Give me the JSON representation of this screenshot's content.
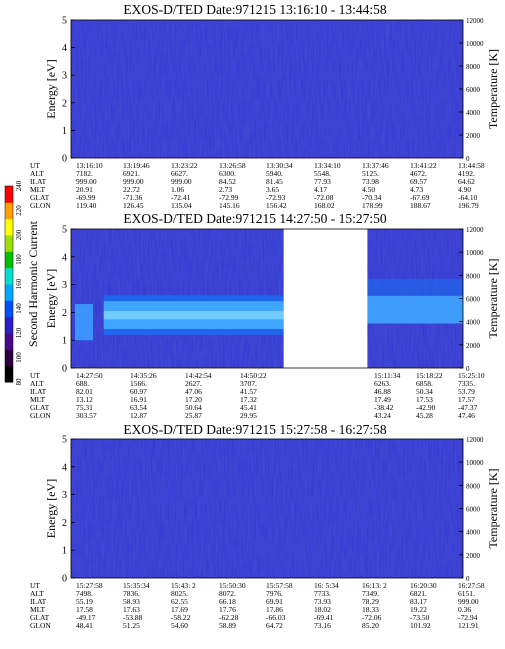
{
  "chart_data": [
    {
      "type": "heatmap",
      "title": "EXOS-D/TED   Date:971215   13:16:10 - 13:44:58",
      "ylabel": "Energy [eV]",
      "ylabel_right": "Temperature [K]",
      "ylim": [
        0,
        5
      ],
      "yticks": [
        "0",
        "1",
        "2",
        "3",
        "4",
        "5"
      ],
      "ylim_right": [
        0,
        12000
      ],
      "yticks_right": [
        "0",
        "2000",
        "4000",
        "6000",
        "8000",
        "10000",
        "12000"
      ],
      "data_gap": null,
      "band": null,
      "ephemeris": [
        {
          "label": "UT",
          "values": [
            "13:16:10",
            "13:19:46",
            "13:23:22",
            "13:26:58",
            "13:30:34",
            "13:34:10",
            "13:37:46",
            "13:41:22",
            "13:44:58"
          ]
        },
        {
          "label": "ALT",
          "values": [
            "7182.",
            "6921.",
            "6627.",
            "6300.",
            "5940.",
            "5548.",
            "5125.",
            "4672.",
            "4192."
          ]
        },
        {
          "label": "ILAT",
          "values": [
            "999.00",
            "999.00",
            "999.00",
            "84.52",
            "81.45",
            "77.93",
            "73.98",
            "69.57",
            "64.62"
          ]
        },
        {
          "label": "MLT",
          "values": [
            "20.91",
            "22.72",
            "1.06",
            "2.73",
            "3.65",
            "4.17",
            "4.50",
            "4.73",
            "4.90"
          ]
        },
        {
          "label": "GLAT",
          "values": [
            "-69.99",
            "-71.36",
            "-72.41",
            "-72.99",
            "-72.93",
            "-72.08",
            "-70.34",
            "-67.69",
            "-64.10"
          ]
        },
        {
          "label": "GLON",
          "values": [
            "119.40",
            "126.45",
            "135.04",
            "145.16",
            "156.42",
            "168.02",
            "178.99",
            "188.67",
            "196.79"
          ]
        }
      ]
    },
    {
      "type": "heatmap",
      "title": "EXOS-D/TED   Date:971215   14:27:50 - 15:27:50",
      "ylabel": "Energy [eV]",
      "ylabel_right": "Temperature [K]",
      "ylim": [
        0,
        5
      ],
      "yticks": [
        "0",
        "1",
        "2",
        "3",
        "4",
        "5"
      ],
      "ylim_right": [
        0,
        12000
      ],
      "yticks_right": [
        "0",
        "2000",
        "4000",
        "6000",
        "8000",
        "10000",
        "12000"
      ],
      "data_gap": [
        "14:59:00",
        "15:11:34"
      ],
      "band": {
        "start": "14:32:00",
        "end": "14:59:00",
        "energy_low": 1.4,
        "energy_high": 2.4
      },
      "ephemeris": [
        {
          "label": "UT",
          "values": [
            "14:27:50",
            "14:35:26",
            "14:42:54",
            "14:50:22",
            "",
            "15:11:34",
            "15:18:22",
            "15:25:10"
          ]
        },
        {
          "label": "ALT",
          "values": [
            "688.",
            "1566.",
            "2627.",
            "3707.",
            "",
            "6263.",
            "6858.",
            "7335."
          ]
        },
        {
          "label": "ILAT",
          "values": [
            "82.01",
            "60.97",
            "47.06",
            "41.57",
            "",
            "46.88",
            "50.34",
            "53.79"
          ]
        },
        {
          "label": "MLT",
          "values": [
            "13.12",
            "16.91",
            "17.20",
            "17.32",
            "",
            "17.49",
            "17.53",
            "17.57"
          ]
        },
        {
          "label": "GLAT",
          "values": [
            "75.31",
            "63.54",
            "50.64",
            "45.41",
            "",
            "-38.42",
            "-42.90",
            "-47.37"
          ]
        },
        {
          "label": "GLON",
          "values": [
            "303.57",
            "12.87",
            "25.87",
            "29.95",
            "",
            "43.24",
            "45.28",
            "47.46"
          ]
        }
      ],
      "colorbar": {
        "label": "Second Harmonic Current",
        "ticks": [
          "80",
          "100",
          "120",
          "140",
          "160",
          "180",
          "200",
          "220",
          "240"
        ],
        "colors": [
          "#000000",
          "#2e0040",
          "#4a0a8c",
          "#2b20c8",
          "#0050ff",
          "#00a8ff",
          "#00e0d0",
          "#00c000",
          "#a0e000",
          "#ffff00",
          "#ffa000",
          "#ff0000"
        ]
      }
    },
    {
      "type": "heatmap",
      "title": "EXOS-D/TED   Date:971215   15:27:58 - 16:27:58",
      "ylabel": "Energy [eV]",
      "ylabel_right": "Temperature [K]",
      "ylim": [
        0,
        5
      ],
      "yticks": [
        "0",
        "1",
        "2",
        "3",
        "4",
        "5"
      ],
      "ylim_right": [
        0,
        12000
      ],
      "yticks_right": [
        "0",
        "2000",
        "4000",
        "6000",
        "8000",
        "10000",
        "12000"
      ],
      "data_gap": null,
      "band": null,
      "ephemeris": [
        {
          "label": "UT",
          "values": [
            "15:27:58",
            "15:35:34",
            "15:43: 2",
            "15:50:30",
            "15:57:58",
            "16: 5:34",
            "16:13: 2",
            "16:20:30",
            "16:27:58"
          ]
        },
        {
          "label": "ALT",
          "values": [
            "7498.",
            "7836.",
            "8025.",
            "8072.",
            "7976.",
            "7733.",
            "7349.",
            "6821.",
            "6151."
          ]
        },
        {
          "label": "ILAT",
          "values": [
            "55.19",
            "58.93",
            "62.55",
            "66.18",
            "69.91",
            "73.93",
            "78.29",
            "83.17",
            "999.00"
          ]
        },
        {
          "label": "MLT",
          "values": [
            "17.58",
            "17.63",
            "17.69",
            "17.76",
            "17.86",
            "18.02",
            "18.33",
            "19.22",
            "0.36"
          ]
        },
        {
          "label": "GLAT",
          "values": [
            "-49.17",
            "-53.88",
            "-58.22",
            "-62.28",
            "-66.03",
            "-69.41",
            "-72.06",
            "-73.50",
            "-72.94"
          ]
        },
        {
          "label": "GLON",
          "values": [
            "48.41",
            "51.25",
            "54.60",
            "58.89",
            "64.72",
            "73.16",
            "85.20",
            "101.92",
            "121.91"
          ]
        }
      ]
    }
  ]
}
